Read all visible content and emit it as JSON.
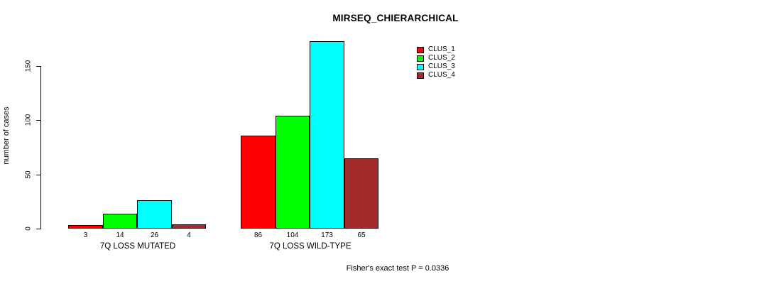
{
  "title": "MIRSEQ_CHIERARCHICAL",
  "y_axis_label": "number of cases",
  "footer_note": "Fisher's exact test P = 0.0336",
  "legend": {
    "items": [
      {
        "label": "CLUS_1",
        "color": "#FF0000"
      },
      {
        "label": "CLUS_2",
        "color": "#00FF00"
      },
      {
        "label": "CLUS_3",
        "color": "#00FFFF"
      },
      {
        "label": "CLUS_4",
        "color": "#A52A2A"
      }
    ]
  },
  "chart_data": {
    "type": "bar",
    "title": "MIRSEQ_CHIERARCHICAL",
    "xlabel": "",
    "ylabel": "number of cases",
    "ylim": [
      0,
      175
    ],
    "yticks": [
      0,
      50,
      100,
      150
    ],
    "grid": false,
    "legend_position": "top-right",
    "categories": [
      "7Q LOSS MUTATED",
      "7Q LOSS WILD-TYPE"
    ],
    "series": [
      {
        "name": "CLUS_1",
        "color": "#FF0000",
        "values": [
          3,
          86
        ]
      },
      {
        "name": "CLUS_2",
        "color": "#00FF00",
        "values": [
          14,
          104
        ]
      },
      {
        "name": "CLUS_3",
        "color": "#00FFFF",
        "values": [
          26,
          173
        ]
      },
      {
        "name": "CLUS_4",
        "color": "#A52A2A",
        "values": [
          4,
          65
        ]
      }
    ],
    "bar_value_labels_shown": true,
    "annotation": "Fisher's exact test P = 0.0336"
  }
}
